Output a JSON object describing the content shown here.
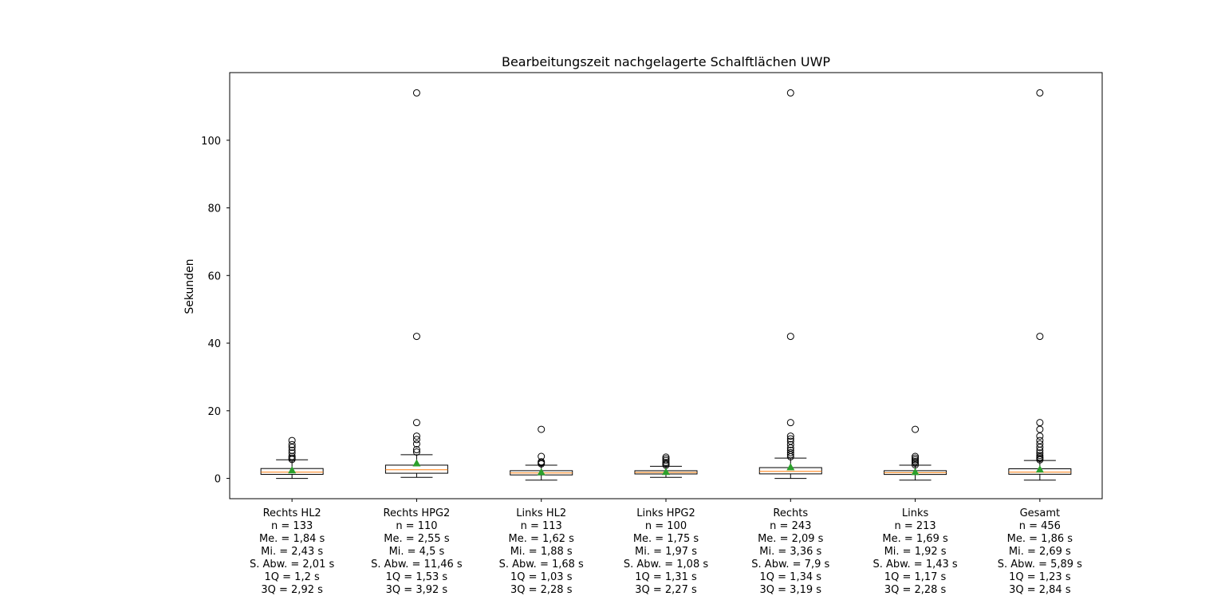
{
  "chart_data": {
    "type": "boxplot",
    "title": "Bearbeitungszeit nachgelagerte Schalftlächen UWP",
    "ylabel": "Sekunden",
    "xlabel": "",
    "ylim": [
      -6,
      120
    ],
    "yticks": [
      0,
      20,
      40,
      60,
      80,
      100
    ],
    "grid": false,
    "legend": "none",
    "colors": {
      "box": "#000000",
      "median": "#ff7f0e",
      "mean_marker": "#2ca02c",
      "outlier": "#000000"
    },
    "categories": [
      "Rechts HL2",
      "Rechts HPG2",
      "Links HL2",
      "Links HPG2",
      "Rechts",
      "Links",
      "Gesamt"
    ],
    "tick_labels": [
      [
        "Rechts HL2",
        "n = 133",
        "Me. = 1,84 s",
        "Mi. = 2,43 s",
        "S. Abw. = 2,01 s",
        "1Q = 1,2 s",
        "3Q = 2,92 s"
      ],
      [
        "Rechts HPG2",
        "n = 110",
        "Me. = 2,55 s",
        "Mi. = 4,5 s",
        "S. Abw. = 11,46 s",
        "1Q = 1,53 s",
        "3Q = 3,92 s"
      ],
      [
        "Links HL2",
        "n = 113",
        "Me. = 1,62 s",
        "Mi. = 1,88 s",
        "S. Abw. = 1,68 s",
        "1Q = 1,03 s",
        "3Q = 2,28 s"
      ],
      [
        "Links HPG2",
        "n = 100",
        "Me. = 1,75 s",
        "Mi. = 1,97 s",
        "S. Abw. = 1,08 s",
        "1Q = 1,31 s",
        "3Q = 2,27 s"
      ],
      [
        "Rechts",
        "n = 243",
        "Me. = 2,09 s",
        "Mi. = 3,36 s",
        "S. Abw. = 7,9 s",
        "1Q = 1,34 s",
        "3Q = 3,19 s"
      ],
      [
        "Links",
        "n = 213",
        "Me. = 1,69 s",
        "Mi. = 1,92 s",
        "S. Abw. = 1,43 s",
        "1Q = 1,17 s",
        "3Q = 2,28 s"
      ],
      [
        "Gesamt",
        "n = 456",
        "Me. = 1,86 s",
        "Mi. = 2,69 s",
        "S. Abw. = 5,89 s",
        "1Q = 1,23 s",
        "3Q = 2,84 s"
      ]
    ],
    "boxes": [
      {
        "q1": 1.2,
        "median": 1.84,
        "q3": 2.92,
        "mean": 2.43,
        "whisker_low": 0.0,
        "whisker_high": 5.5,
        "outliers": [
          5.6,
          6.0,
          6.5,
          7.5,
          8.3,
          9.2,
          10.0,
          11.2
        ]
      },
      {
        "q1": 1.53,
        "median": 2.55,
        "q3": 3.92,
        "mean": 4.5,
        "whisker_low": 0.3,
        "whisker_high": 7.0,
        "outliers": [
          7.8,
          8.5,
          10.2,
          11.5,
          12.5,
          16.5,
          42.0,
          114.0
        ]
      },
      {
        "q1": 1.03,
        "median": 1.62,
        "q3": 2.28,
        "mean": 1.88,
        "whisker_low": -0.5,
        "whisker_high": 3.9,
        "outliers": [
          4.3,
          4.6,
          4.9,
          6.5,
          14.5
        ]
      },
      {
        "q1": 1.31,
        "median": 1.75,
        "q3": 2.27,
        "mean": 1.97,
        "whisker_low": 0.3,
        "whisker_high": 3.6,
        "outliers": [
          3.9,
          4.3,
          4.7,
          5.3,
          5.8,
          6.3
        ]
      },
      {
        "q1": 1.34,
        "median": 2.09,
        "q3": 3.19,
        "mean": 3.36,
        "whisker_low": 0.0,
        "whisker_high": 6.0,
        "outliers": [
          6.4,
          7.0,
          7.6,
          8.3,
          9.0,
          10.0,
          11.0,
          11.7,
          12.5,
          16.5,
          42.0,
          114.0
        ]
      },
      {
        "q1": 1.17,
        "median": 1.69,
        "q3": 2.28,
        "mean": 1.92,
        "whisker_low": -0.5,
        "whisker_high": 3.9,
        "outliers": [
          4.0,
          4.5,
          5.0,
          5.5,
          6.0,
          6.5,
          14.5
        ]
      },
      {
        "q1": 1.23,
        "median": 1.86,
        "q3": 2.84,
        "mean": 2.69,
        "whisker_low": -0.5,
        "whisker_high": 5.3,
        "outliers": [
          5.5,
          5.9,
          6.3,
          6.8,
          7.5,
          8.3,
          9.2,
          10.2,
          11.2,
          12.5,
          14.5,
          16.5,
          42.0,
          114.0
        ]
      }
    ]
  }
}
